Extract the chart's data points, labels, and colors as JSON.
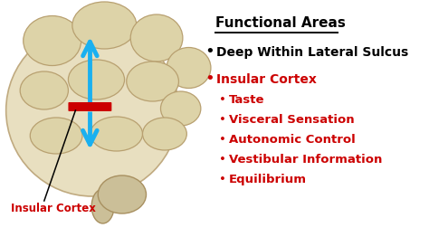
{
  "bg_color": "#ffffff",
  "title": "Functional Areas",
  "title_color": "#000000",
  "title_fontsize": 11,
  "bullet1_text": "Deep Within Lateral Sulcus",
  "bullet1_color": "#000000",
  "bullet1_fontsize": 10,
  "red_header": "Insular Cortex",
  "red_header_color": "#cc0000",
  "red_header_fontsize": 10,
  "sub_items": [
    "Taste",
    "Visceral Sensation",
    "Autonomic Control",
    "Vestibular Information",
    "Equilibrium"
  ],
  "sub_color": "#cc0000",
  "sub_fontsize": 9.5,
  "label_insular": "Insular Cortex",
  "label_color": "#cc0000",
  "arrow_color": "#1ab0f0",
  "red_mark_color": "#cc0000"
}
